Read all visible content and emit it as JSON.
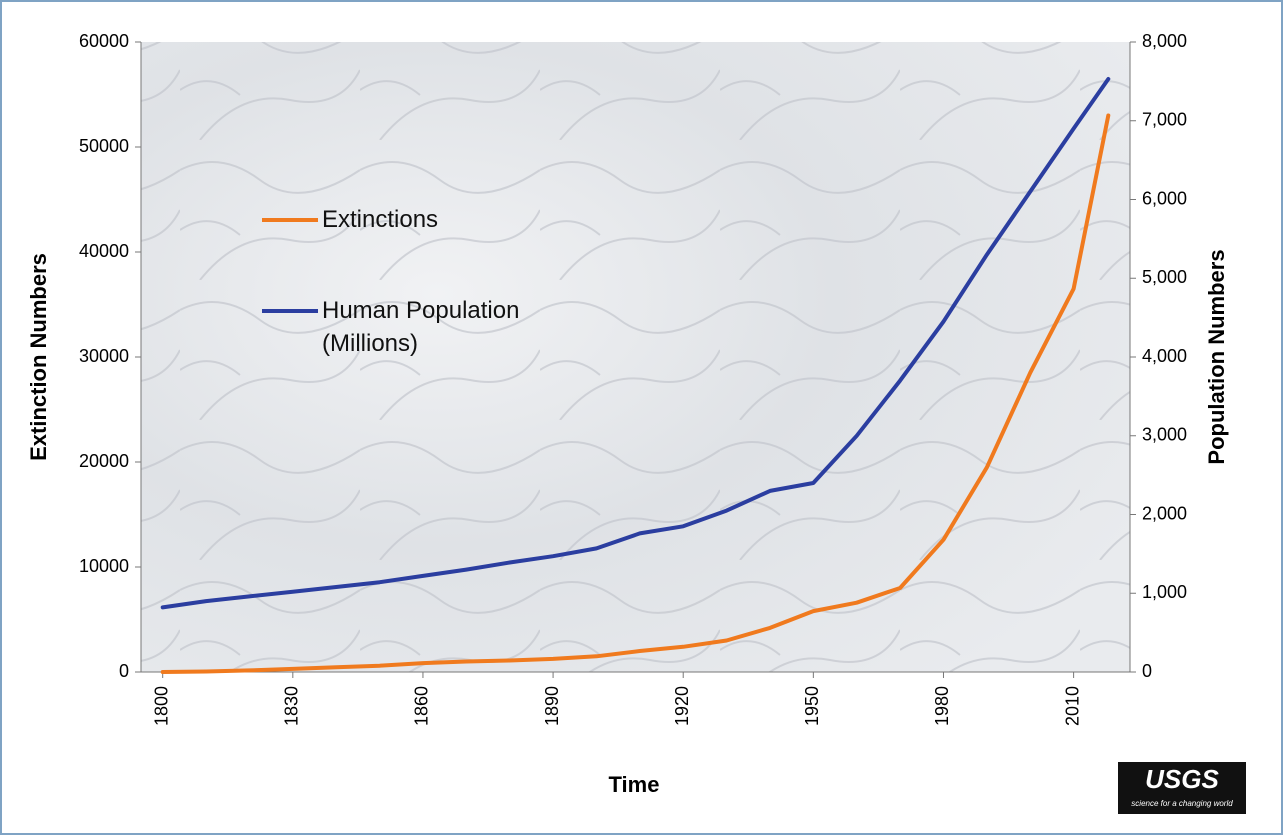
{
  "chart_data": {
    "type": "line",
    "x_label": "Time",
    "y_label": "Extinction Numbers",
    "y2_label": "Population Numbers",
    "x": [
      1800,
      1810,
      1820,
      1830,
      1840,
      1850,
      1860,
      1870,
      1880,
      1890,
      1900,
      1910,
      1920,
      1930,
      1940,
      1950,
      1960,
      1970,
      1980,
      1990,
      2000,
      2010,
      2018
    ],
    "series": [
      {
        "name": "Extinctions",
        "color": "#f07a1e",
        "values": [
          0,
          50,
          150,
          300,
          450,
          600,
          850,
          1000,
          1100,
          1250,
          1500,
          2000,
          2400,
          3000,
          4200,
          5800,
          6600,
          8000,
          12600,
          19500,
          28500,
          36500,
          53000
        ]
      },
      {
        "name": "Human Population (Millions)",
        "color": "#2b3ea0",
        "axis": "y2",
        "values": [
          820,
          900,
          960,
          1020,
          1080,
          1140,
          1220,
          1300,
          1390,
          1470,
          1570,
          1760,
          1850,
          2050,
          2300,
          2400,
          3000,
          3700,
          4450,
          5300,
          6100,
          6900,
          7530
        ]
      }
    ],
    "xlim": [
      1795,
      2023
    ],
    "xticks": [
      1800,
      1830,
      1860,
      1890,
      1920,
      1950,
      1980,
      2010
    ],
    "ylim": [
      0,
      60000
    ],
    "yticks": [
      0,
      10000,
      20000,
      30000,
      40000,
      50000,
      60000
    ],
    "y2lim": [
      0,
      8000
    ],
    "y2ticks": [
      0,
      {
        "value": 1000,
        "label": "1,000"
      },
      {
        "value": 2000,
        "label": "2,000"
      },
      {
        "value": 3000,
        "label": "3,000"
      },
      {
        "value": 4000,
        "label": "4,000"
      },
      {
        "value": 5000,
        "label": "5,000"
      },
      {
        "value": 6000,
        "label": "6,000"
      },
      {
        "value": 7000,
        "label": "7,000"
      },
      {
        "value": 8000,
        "label": "8,000"
      }
    ]
  },
  "logo": {
    "text": "USGS",
    "tagline": "science for a changing world"
  }
}
